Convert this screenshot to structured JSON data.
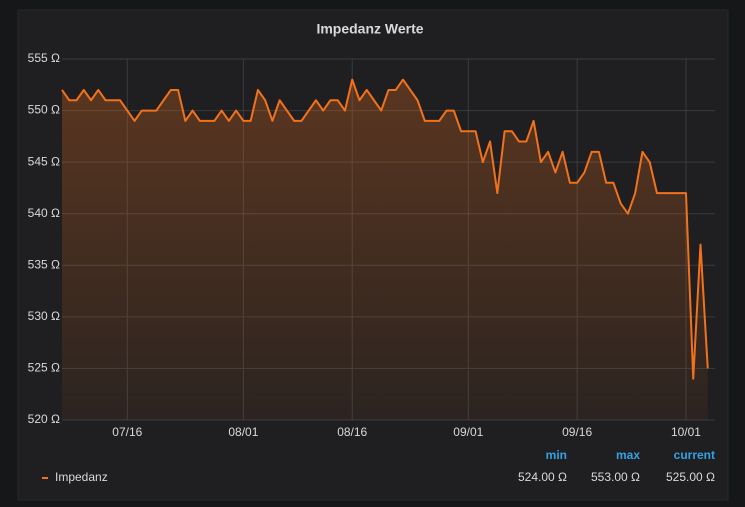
{
  "chart_data": {
    "type": "line",
    "title": "Impedanz Werte",
    "x": [
      "07/07",
      "07/08",
      "07/09",
      "07/10",
      "07/11",
      "07/12",
      "07/13",
      "07/14",
      "07/15",
      "07/16",
      "07/17",
      "07/18",
      "07/19",
      "07/20",
      "07/21",
      "07/22",
      "07/23",
      "07/24",
      "07/25",
      "07/26",
      "07/27",
      "07/28",
      "07/29",
      "07/30",
      "07/31",
      "08/01",
      "08/02",
      "08/03",
      "08/04",
      "08/05",
      "08/06",
      "08/07",
      "08/08",
      "08/09",
      "08/10",
      "08/11",
      "08/12",
      "08/13",
      "08/14",
      "08/15",
      "08/16",
      "08/17",
      "08/18",
      "08/19",
      "08/20",
      "08/21",
      "08/22",
      "08/23",
      "08/24",
      "08/25",
      "08/26",
      "08/27",
      "08/28",
      "08/29",
      "08/30",
      "08/31",
      "09/01",
      "09/02",
      "09/03",
      "09/04",
      "09/05",
      "09/06",
      "09/07",
      "09/08",
      "09/09",
      "09/10",
      "09/11",
      "09/12",
      "09/13",
      "09/14",
      "09/15",
      "09/16",
      "09/17",
      "09/18",
      "09/19",
      "09/20",
      "09/21",
      "09/22",
      "09/23",
      "09/24",
      "09/25",
      "09/26",
      "09/27",
      "09/28",
      "09/29",
      "09/30",
      "10/01",
      "10/02",
      "10/03",
      "10/04"
    ],
    "series": [
      {
        "name": "Impedanz",
        "color": "#f2711c",
        "values": [
          552,
          551,
          551,
          552,
          551,
          552,
          551,
          551,
          551,
          550,
          549,
          550,
          550,
          550,
          551,
          552,
          552,
          549,
          550,
          549,
          549,
          549,
          550,
          549,
          550,
          549,
          549,
          552,
          551,
          549,
          551,
          550,
          549,
          549,
          550,
          551,
          550,
          551,
          551,
          550,
          553,
          551,
          552,
          551,
          550,
          552,
          552,
          553,
          552,
          551,
          549,
          549,
          549,
          550,
          550,
          548,
          548,
          548,
          545,
          547,
          542,
          548,
          548,
          547,
          547,
          549,
          545,
          546,
          544,
          546,
          543,
          543,
          544,
          546,
          546,
          543,
          543,
          541,
          540,
          542,
          546,
          545,
          542,
          542,
          542,
          542,
          542,
          524,
          537,
          525
        ]
      }
    ],
    "xlim": [
      "07/07",
      "10/05"
    ],
    "xticks": [
      "07/16",
      "08/01",
      "08/16",
      "09/01",
      "09/16",
      "10/01"
    ],
    "ylim": [
      520,
      555
    ],
    "yticks": [
      {
        "value": 520,
        "label": "520 Ω"
      },
      {
        "value": 525,
        "label": "525 Ω"
      },
      {
        "value": 530,
        "label": "530 Ω"
      },
      {
        "value": 535,
        "label": "535 Ω"
      },
      {
        "value": 540,
        "label": "540 Ω"
      },
      {
        "value": 545,
        "label": "545 Ω"
      },
      {
        "value": 550,
        "label": "550 Ω"
      },
      {
        "value": 555,
        "label": "555 Ω"
      }
    ],
    "grid": true,
    "legend_stats": [
      {
        "name": "min",
        "label": "524.00 Ω"
      },
      {
        "name": "max",
        "label": "553.00 Ω"
      },
      {
        "name": "current",
        "label": "525.00 Ω"
      }
    ]
  }
}
